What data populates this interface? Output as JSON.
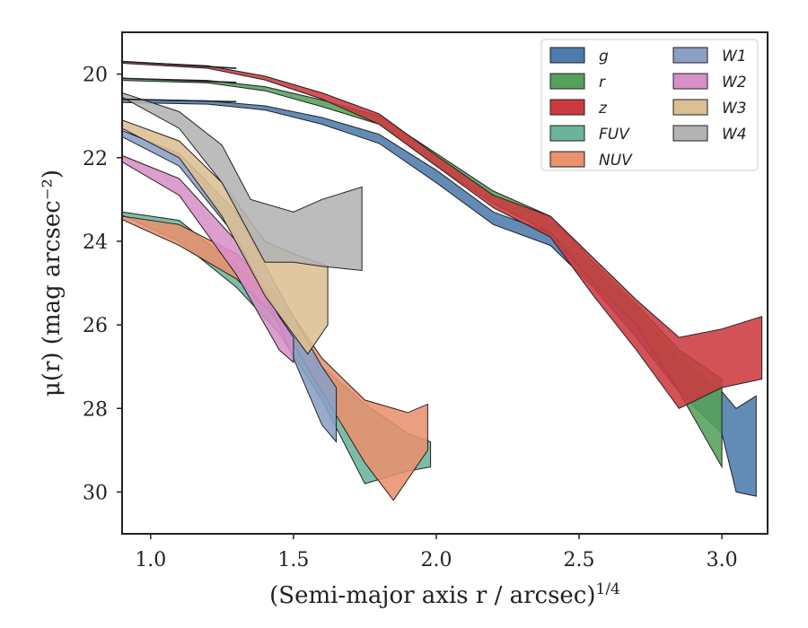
{
  "chart_data": {
    "type": "area",
    "xlabel": "(Semi-major axis r / arcsec)",
    "xlabel_exponent": "1/4",
    "ylabel": "μ(r) (mag arcsec⁻²)",
    "xlim": [
      0.9,
      3.16
    ],
    "ylim": [
      31.0,
      19.0
    ],
    "y_inverted": true,
    "xticks": [
      "1.0",
      "1.5",
      "2.0",
      "2.5",
      "3.0"
    ],
    "yticks": [
      "20",
      "22",
      "24",
      "26",
      "28",
      "30"
    ],
    "legend_position": "top-right",
    "legend_columns": 2,
    "series": [
      {
        "name": "g",
        "color": "#4c7cac",
        "upper": [
          [
            0.9,
            20.6
          ],
          [
            1.2,
            20.64
          ],
          [
            1.4,
            20.76
          ],
          [
            1.6,
            21.04
          ],
          [
            1.8,
            21.44
          ],
          [
            2.0,
            22.3
          ],
          [
            2.2,
            23.3
          ],
          [
            2.4,
            23.8
          ],
          [
            2.55,
            24.6
          ],
          [
            2.7,
            25.6
          ],
          [
            2.85,
            26.8
          ],
          [
            3.0,
            27.6
          ],
          [
            3.05,
            28.0
          ],
          [
            3.12,
            27.7
          ]
        ],
        "lower": [
          [
            0.9,
            20.68
          ],
          [
            1.2,
            20.72
          ],
          [
            1.4,
            20.86
          ],
          [
            1.6,
            21.2
          ],
          [
            1.8,
            21.66
          ],
          [
            2.0,
            22.6
          ],
          [
            2.2,
            23.6
          ],
          [
            2.4,
            24.1
          ],
          [
            2.55,
            25.1
          ],
          [
            2.7,
            26.3
          ],
          [
            2.85,
            27.6
          ],
          [
            3.0,
            28.6
          ],
          [
            3.05,
            30.0
          ],
          [
            3.12,
            30.1
          ]
        ]
      },
      {
        "name": "r",
        "color": "#55a05a",
        "upper": [
          [
            0.9,
            20.1
          ],
          [
            1.2,
            20.15
          ],
          [
            1.4,
            20.3
          ],
          [
            1.6,
            20.62
          ],
          [
            1.8,
            21.0
          ],
          [
            2.0,
            21.9
          ],
          [
            2.2,
            22.8
          ],
          [
            2.4,
            23.4
          ],
          [
            2.55,
            24.5
          ],
          [
            2.7,
            25.5
          ],
          [
            2.85,
            26.6
          ],
          [
            3.0,
            27.3
          ]
        ],
        "lower": [
          [
            0.9,
            20.15
          ],
          [
            1.2,
            20.21
          ],
          [
            1.4,
            20.4
          ],
          [
            1.6,
            20.78
          ],
          [
            1.8,
            21.2
          ],
          [
            2.0,
            22.2
          ],
          [
            2.2,
            23.1
          ],
          [
            2.4,
            23.8
          ],
          [
            2.55,
            25.0
          ],
          [
            2.7,
            26.0
          ],
          [
            2.85,
            27.6
          ],
          [
            3.0,
            29.4
          ]
        ]
      },
      {
        "name": "z",
        "color": "#cc3a40",
        "upper": [
          [
            0.9,
            19.7
          ],
          [
            1.2,
            19.8
          ],
          [
            1.4,
            20.05
          ],
          [
            1.6,
            20.45
          ],
          [
            1.8,
            20.95
          ],
          [
            2.0,
            21.95
          ],
          [
            2.2,
            22.9
          ],
          [
            2.4,
            23.4
          ],
          [
            2.55,
            24.4
          ],
          [
            2.7,
            25.4
          ],
          [
            2.85,
            26.3
          ],
          [
            3.0,
            26.1
          ],
          [
            3.14,
            25.8
          ]
        ],
        "lower": [
          [
            0.9,
            19.74
          ],
          [
            1.2,
            19.86
          ],
          [
            1.4,
            20.14
          ],
          [
            1.6,
            20.6
          ],
          [
            1.8,
            21.2
          ],
          [
            2.0,
            22.2
          ],
          [
            2.2,
            23.2
          ],
          [
            2.4,
            23.9
          ],
          [
            2.55,
            25.3
          ],
          [
            2.7,
            26.6
          ],
          [
            2.85,
            28.0
          ],
          [
            3.0,
            27.5
          ],
          [
            3.14,
            27.3
          ]
        ]
      },
      {
        "name": "FUV",
        "color": "#6bb49a",
        "upper": [
          [
            0.9,
            23.3
          ],
          [
            1.1,
            23.5
          ],
          [
            1.3,
            24.6
          ],
          [
            1.45,
            25.6
          ],
          [
            1.6,
            27.0
          ],
          [
            1.75,
            27.9
          ],
          [
            1.9,
            28.6
          ],
          [
            1.98,
            28.8
          ]
        ],
        "lower": [
          [
            0.9,
            23.38
          ],
          [
            1.1,
            24.0
          ],
          [
            1.3,
            25.1
          ],
          [
            1.45,
            26.2
          ],
          [
            1.6,
            27.8
          ],
          [
            1.75,
            29.8
          ],
          [
            1.9,
            29.5
          ],
          [
            1.98,
            29.4
          ]
        ]
      },
      {
        "name": "NUV",
        "color": "#e8926e",
        "upper": [
          [
            0.9,
            23.4
          ],
          [
            1.1,
            23.6
          ],
          [
            1.3,
            24.3
          ],
          [
            1.45,
            25.3
          ],
          [
            1.6,
            26.8
          ],
          [
            1.75,
            27.8
          ],
          [
            1.9,
            28.1
          ],
          [
            1.97,
            27.9
          ]
        ],
        "lower": [
          [
            0.9,
            23.48
          ],
          [
            1.1,
            24.1
          ],
          [
            1.3,
            24.9
          ],
          [
            1.45,
            25.9
          ],
          [
            1.6,
            27.6
          ],
          [
            1.75,
            29.3
          ],
          [
            1.85,
            30.2
          ],
          [
            1.97,
            29.0
          ]
        ]
      },
      {
        "name": "W1",
        "color": "#8b9fc6",
        "upper": [
          [
            0.9,
            21.35
          ],
          [
            1.1,
            21.9
          ],
          [
            1.3,
            23.3
          ],
          [
            1.45,
            25.2
          ],
          [
            1.6,
            27.0
          ],
          [
            1.65,
            27.5
          ]
        ],
        "lower": [
          [
            0.9,
            21.5
          ],
          [
            1.1,
            22.2
          ],
          [
            1.3,
            23.9
          ],
          [
            1.45,
            26.0
          ],
          [
            1.6,
            28.4
          ],
          [
            1.65,
            28.8
          ]
        ]
      },
      {
        "name": "W2",
        "color": "#d790c8",
        "upper": [
          [
            0.9,
            21.95
          ],
          [
            1.1,
            22.5
          ],
          [
            1.3,
            24.0
          ],
          [
            1.45,
            25.8
          ],
          [
            1.5,
            26.3
          ]
        ],
        "lower": [
          [
            0.9,
            22.1
          ],
          [
            1.1,
            22.9
          ],
          [
            1.3,
            24.8
          ],
          [
            1.45,
            26.6
          ],
          [
            1.5,
            26.9
          ]
        ]
      },
      {
        "name": "W3",
        "color": "#dcbf93",
        "upper": [
          [
            0.9,
            21.1
          ],
          [
            1.1,
            21.6
          ],
          [
            1.25,
            22.6
          ],
          [
            1.4,
            24.0
          ],
          [
            1.5,
            24.3
          ],
          [
            1.62,
            24.6
          ]
        ],
        "lower": [
          [
            0.9,
            21.3
          ],
          [
            1.1,
            22.0
          ],
          [
            1.25,
            23.4
          ],
          [
            1.4,
            25.3
          ],
          [
            1.55,
            26.7
          ],
          [
            1.62,
            26.0
          ]
        ]
      },
      {
        "name": "W4",
        "color": "#b3b3b3",
        "upper": [
          [
            0.9,
            20.45
          ],
          [
            1.1,
            20.9
          ],
          [
            1.25,
            21.7
          ],
          [
            1.35,
            23.0
          ],
          [
            1.5,
            23.3
          ],
          [
            1.6,
            23.0
          ],
          [
            1.74,
            22.7
          ]
        ],
        "lower": [
          [
            0.9,
            20.55
          ],
          [
            1.1,
            21.3
          ],
          [
            1.25,
            22.6
          ],
          [
            1.4,
            24.5
          ],
          [
            1.5,
            24.5
          ],
          [
            1.6,
            24.6
          ],
          [
            1.74,
            24.7
          ]
        ]
      }
    ],
    "baselines": [
      {
        "series": "g",
        "x": [
          0.9,
          1.3
        ],
        "y": [
          20.6,
          20.66
        ]
      },
      {
        "series": "r",
        "x": [
          0.9,
          1.3
        ],
        "y": [
          20.1,
          20.2
        ]
      },
      {
        "series": "z",
        "x": [
          0.9,
          1.3
        ],
        "y": [
          19.7,
          19.86
        ]
      }
    ]
  }
}
